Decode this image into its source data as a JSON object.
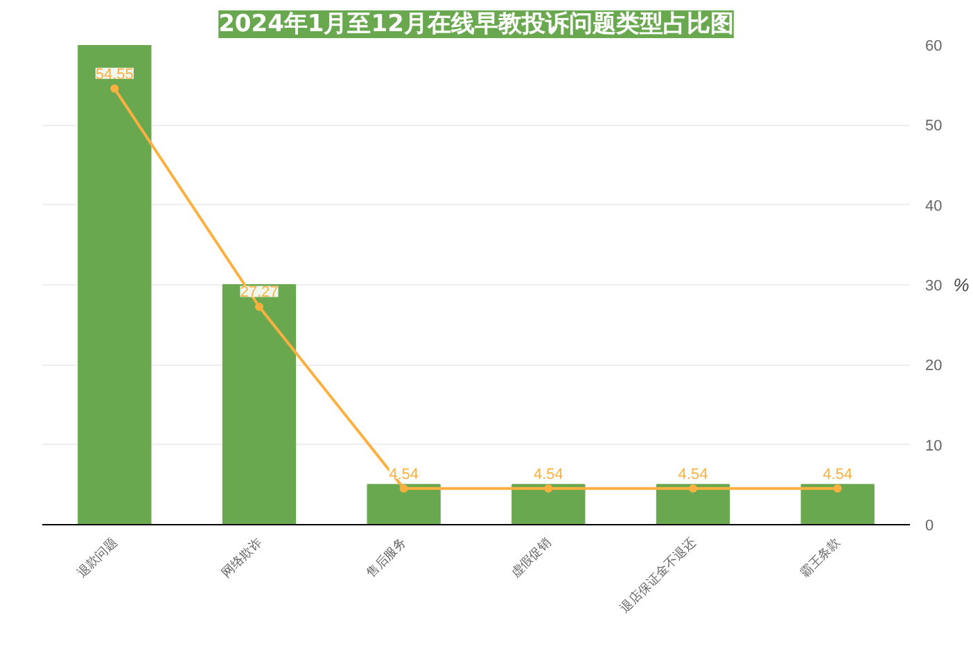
{
  "chart_data": {
    "type": "bar",
    "title": "2024年1月至12月在线早教投诉问题类型占比图",
    "ylabel": "%",
    "categories": [
      "退款问题",
      "网络欺诈",
      "售后服务",
      "虚假促销",
      "退店保证金不退还",
      "霸王条款"
    ],
    "series": [
      {
        "color": "#6aa84f",
        "values": [
          60,
          30,
          5,
          5,
          5,
          5
        ]
      },
      {
        "type": "line",
        "color": "#fbb040",
        "values": [
          54.55,
          27.27,
          4.54,
          4.54,
          4.54,
          4.54
        ],
        "value_labels": [
          "54.55",
          "27.27",
          "4.54",
          "4.54",
          "4.54",
          "4.54"
        ]
      }
    ],
    "ylim": [
      0,
      60
    ],
    "yticks": [
      0,
      10,
      20,
      30,
      40,
      50,
      60
    ],
    "grid": "y",
    "marker": "circle"
  }
}
